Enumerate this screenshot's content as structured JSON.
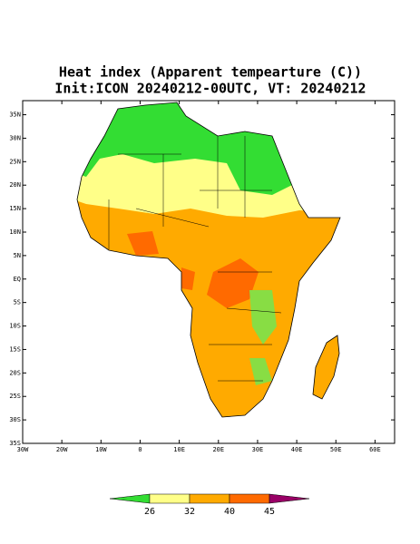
{
  "map": {
    "title": "Heat index (Apparent tempearture (C))",
    "subtitle": "Init:ICON 20240212-00UTC, VT: 20240212",
    "xlim": [
      -30,
      65
    ],
    "ylim": [
      -35,
      38
    ],
    "lon_ticks": [
      {
        "value": -30,
        "label": "30W"
      },
      {
        "value": -20,
        "label": "20W"
      },
      {
        "value": -10,
        "label": "10W"
      },
      0,
      {
        "value": 10,
        "label": "10E"
      },
      {
        "value": 20,
        "label": "20E"
      },
      {
        "value": 30,
        "label": "30E"
      },
      {
        "value": 40,
        "label": "40E"
      },
      {
        "value": 50,
        "label": "50E"
      },
      {
        "value": 60,
        "label": "60E"
      }
    ],
    "lat_ticks": [
      {
        "value": -35,
        "label": "35S"
      },
      {
        "value": -30,
        "label": "30S"
      },
      {
        "value": -25,
        "label": "25S"
      },
      {
        "value": -20,
        "label": "20S"
      },
      {
        "value": -15,
        "label": "15S"
      },
      {
        "value": -10,
        "label": "10S"
      },
      {
        "value": -5,
        "label": "5S"
      },
      {
        "value": 0,
        "label": "EQ"
      },
      {
        "value": 5,
        "label": "5N"
      },
      {
        "value": 10,
        "label": "10N"
      },
      {
        "value": 15,
        "label": "15N"
      },
      {
        "value": 20,
        "label": "20N"
      },
      {
        "value": 25,
        "label": "25N"
      },
      {
        "value": 30,
        "label": "30N"
      },
      {
        "value": 35,
        "label": "35N"
      }
    ],
    "colorbar": {
      "levels": [
        26,
        32,
        40,
        45
      ],
      "colors": [
        "#33dd33",
        "#ffff88",
        "#ffaa00",
        "#ff6a00",
        "#990066"
      ]
    }
  }
}
